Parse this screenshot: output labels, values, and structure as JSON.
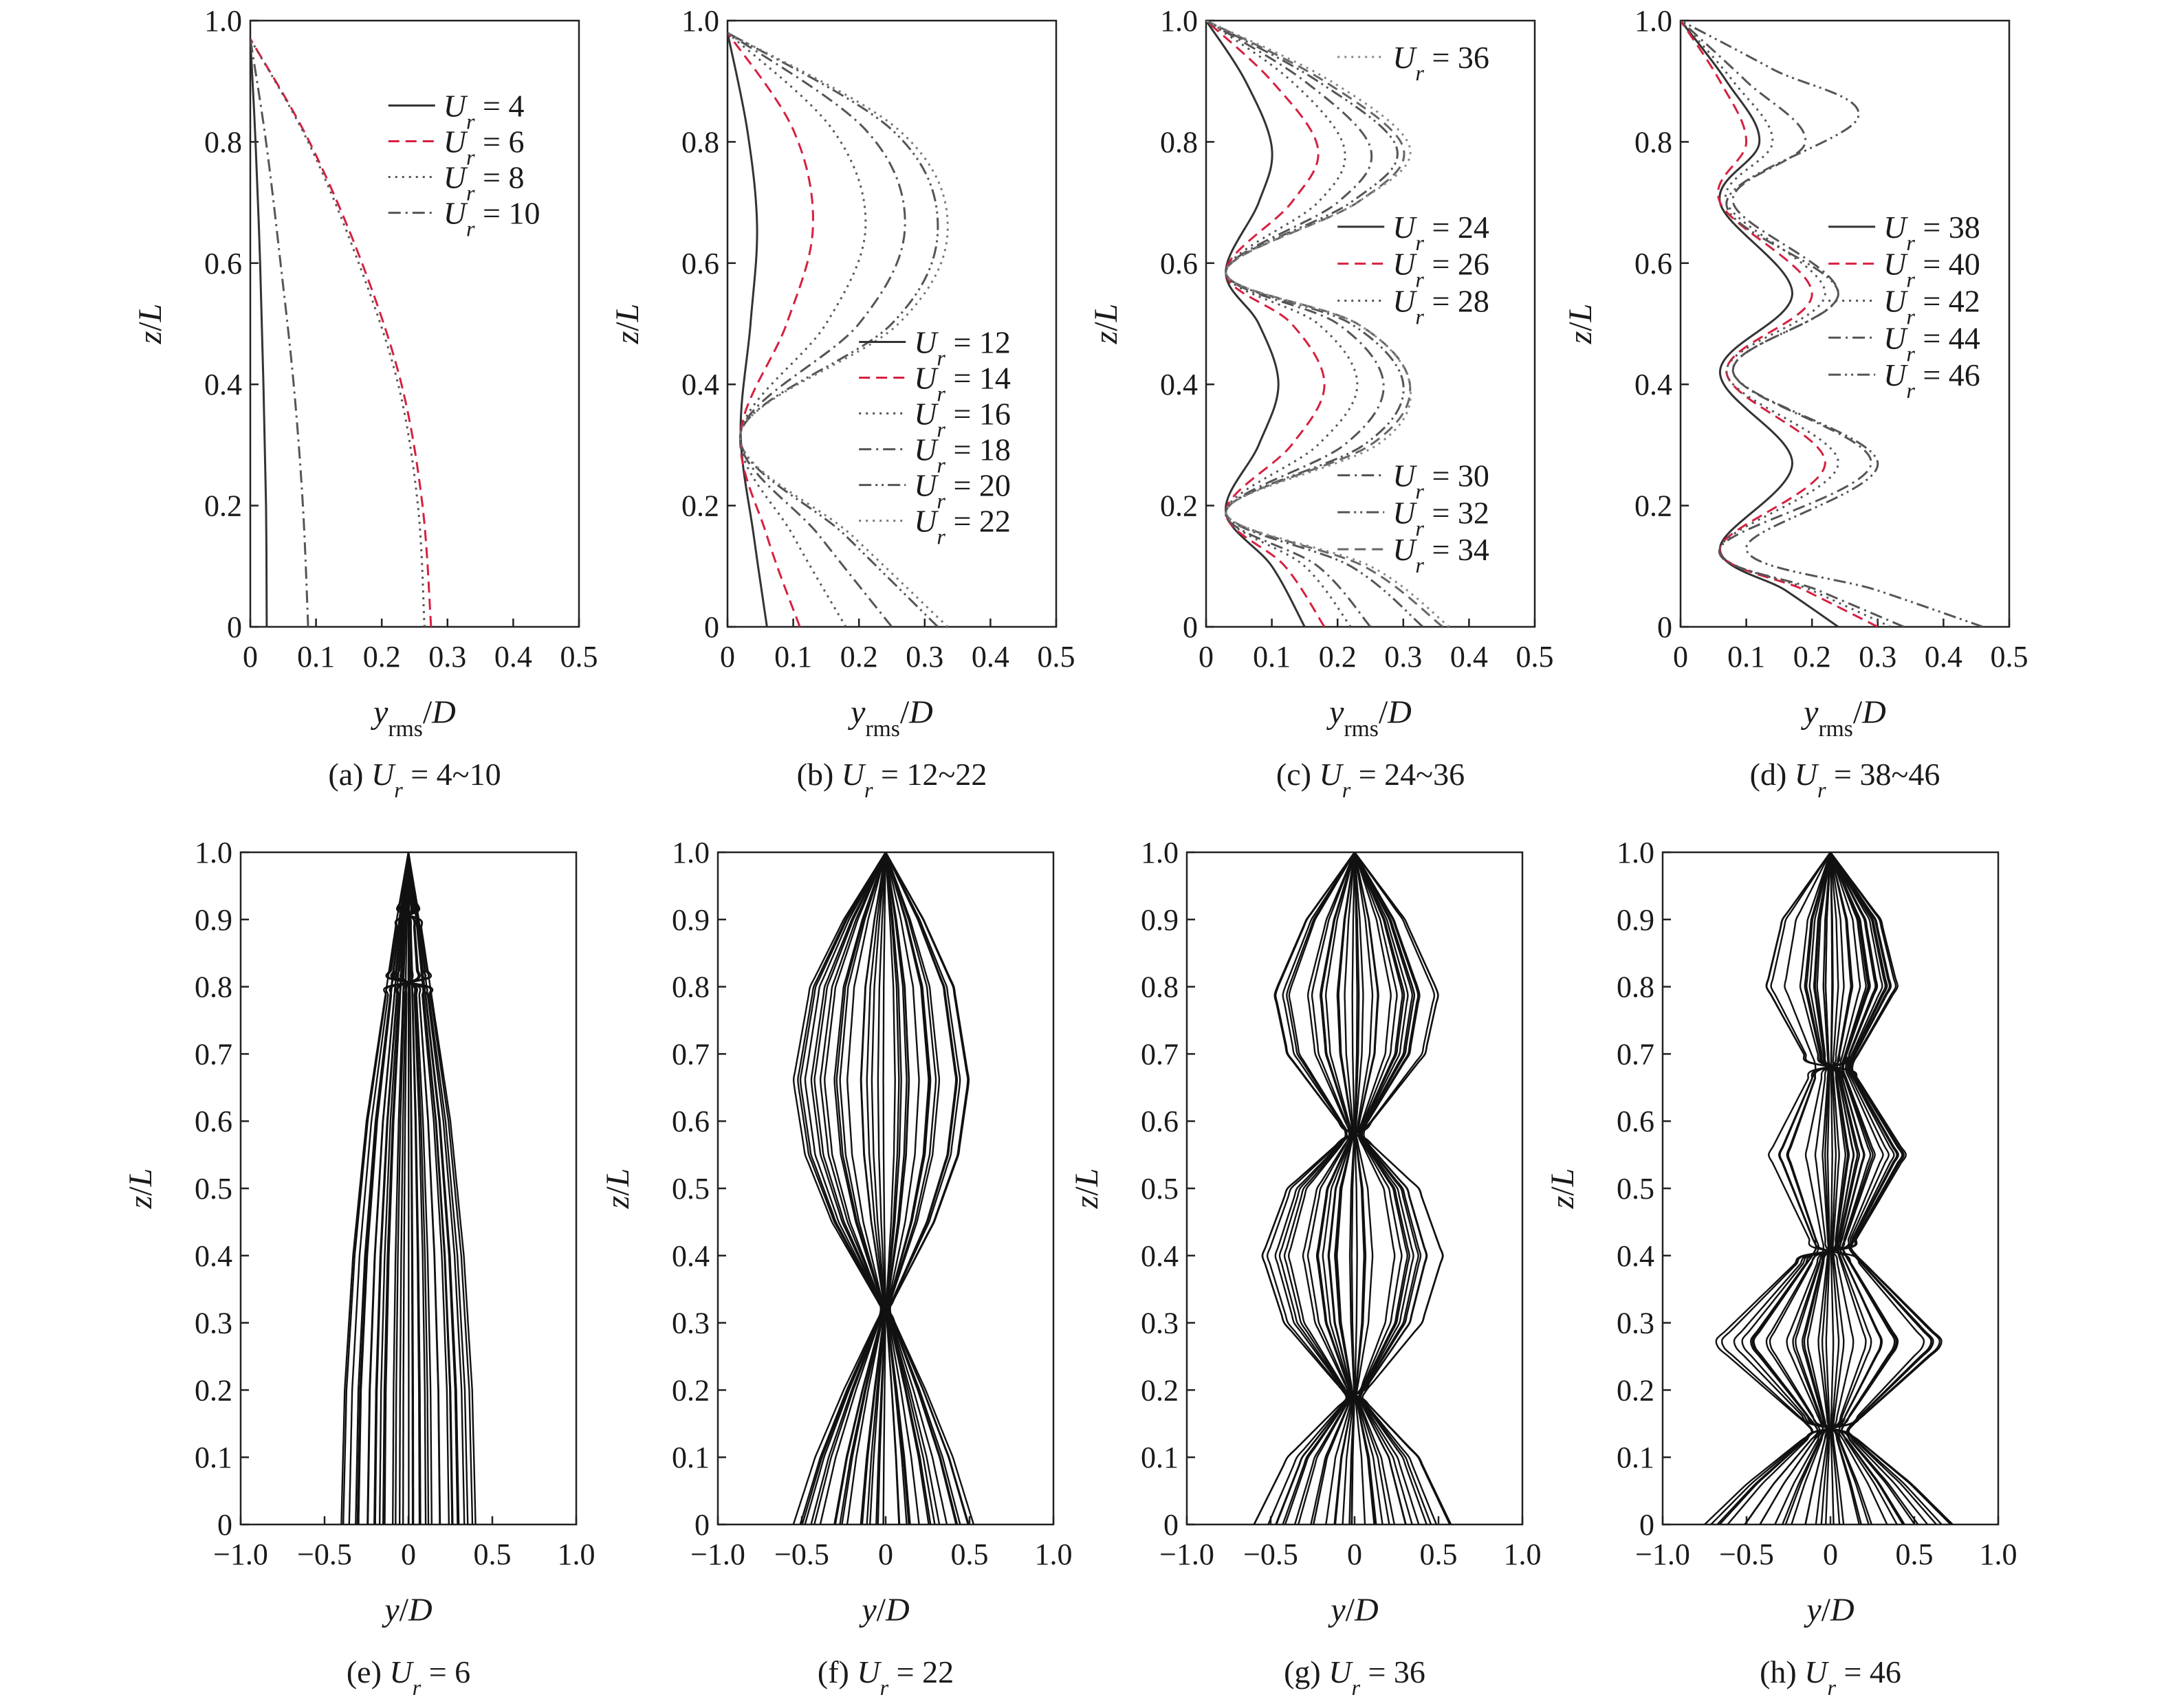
{
  "chart_data": [
    {
      "id": "a",
      "type": "line",
      "caption": "(a) U_r = 4~10",
      "caption_parts": {
        "prefix": "(a) ",
        "var": "U",
        "sub": "r",
        "suffix": " = 4~10"
      },
      "xlabel": "y_rms/D",
      "ylabel": "z/L",
      "xlim": [
        0,
        0.5
      ],
      "ylim": [
        0,
        1.0
      ],
      "xticks": [
        "0",
        "0.1",
        "0.2",
        "0.3",
        "0.4",
        "0.5"
      ],
      "yticks": [
        "0",
        "0.2",
        "0.4",
        "0.6",
        "0.8",
        "1.0"
      ],
      "legend_position": "top-right",
      "legend": [
        {
          "label": "U_r = 4",
          "value": "4"
        },
        {
          "label": "U_r = 6",
          "value": "6"
        },
        {
          "label": "U_r = 8",
          "value": "8"
        },
        {
          "label": "U_r = 10",
          "value": "10"
        }
      ],
      "series": [
        {
          "label": "U_r = 4",
          "style": "solid",
          "color": "#333333",
          "z": [
            0,
            0.2,
            0.4,
            0.6,
            0.8,
            0.97
          ],
          "y": [
            0.025,
            0.024,
            0.02,
            0.015,
            0.008,
            0.0
          ]
        },
        {
          "label": "U_r = 6",
          "style": "dashed",
          "color": "#d62040",
          "z": [
            0,
            0.2,
            0.4,
            0.6,
            0.8,
            0.97
          ],
          "y": [
            0.275,
            0.262,
            0.23,
            0.17,
            0.09,
            0.0
          ]
        },
        {
          "label": "U_r = 8",
          "style": "dotted",
          "color": "#555555",
          "z": [
            0,
            0.2,
            0.4,
            0.6,
            0.8,
            0.97
          ],
          "y": [
            0.265,
            0.255,
            0.225,
            0.165,
            0.088,
            0.0
          ]
        },
        {
          "label": "U_r = 10",
          "style": "dashdot",
          "color": "#555555",
          "z": [
            0,
            0.2,
            0.4,
            0.6,
            0.8,
            0.97
          ],
          "y": [
            0.088,
            0.08,
            0.066,
            0.046,
            0.024,
            0.0
          ]
        }
      ]
    },
    {
      "id": "b",
      "type": "line",
      "caption": "(b) U_r = 12~22",
      "caption_parts": {
        "prefix": "(b) ",
        "var": "U",
        "sub": "r",
        "suffix": " = 12~22"
      },
      "xlabel": "y_rms/D",
      "ylabel": "z/L",
      "xlim": [
        0,
        0.5
      ],
      "ylim": [
        0,
        1.0
      ],
      "xticks": [
        "0",
        "0.1",
        "0.2",
        "0.3",
        "0.4",
        "0.5"
      ],
      "yticks": [
        "0",
        "0.2",
        "0.4",
        "0.6",
        "0.8",
        "1.0"
      ],
      "legend_position": "middle-right",
      "legend": [
        {
          "label": "U_r = 12",
          "value": "12"
        },
        {
          "label": "U_r = 14",
          "value": "14"
        },
        {
          "label": "U_r = 16",
          "value": "16"
        },
        {
          "label": "U_r = 18",
          "value": "18"
        },
        {
          "label": "U_r = 20",
          "value": "20"
        },
        {
          "label": "U_r = 22",
          "value": "22"
        }
      ],
      "series": [
        {
          "label": "U_r = 12",
          "style": "solid",
          "color": "#333333",
          "z": [
            0,
            0.15,
            0.32,
            0.5,
            0.66,
            0.82,
            0.98
          ],
          "y": [
            0.06,
            0.04,
            0.02,
            0.035,
            0.045,
            0.03,
            0.0
          ]
        },
        {
          "label": "U_r = 14",
          "style": "dashed",
          "color": "#d62040",
          "z": [
            0,
            0.15,
            0.32,
            0.5,
            0.66,
            0.82,
            0.98
          ],
          "y": [
            0.11,
            0.06,
            0.02,
            0.09,
            0.13,
            0.1,
            0.0
          ]
        },
        {
          "label": "U_r = 16",
          "style": "dotted",
          "color": "#555555",
          "z": [
            0,
            0.15,
            0.32,
            0.5,
            0.66,
            0.82,
            0.98
          ],
          "y": [
            0.18,
            0.1,
            0.02,
            0.15,
            0.21,
            0.16,
            0.0
          ]
        },
        {
          "label": "U_r = 18",
          "style": "dashdot",
          "color": "#555555",
          "z": [
            0,
            0.15,
            0.32,
            0.5,
            0.66,
            0.82,
            0.98
          ],
          "y": [
            0.25,
            0.14,
            0.02,
            0.2,
            0.27,
            0.21,
            0.0
          ]
        },
        {
          "label": "U_r = 20",
          "style": "dashdotdot",
          "color": "#555555",
          "z": [
            0,
            0.15,
            0.32,
            0.5,
            0.66,
            0.82,
            0.98
          ],
          "y": [
            0.32,
            0.18,
            0.02,
            0.25,
            0.32,
            0.25,
            0.0
          ]
        },
        {
          "label": "U_r = 22",
          "style": "dotted",
          "color": "#777777",
          "z": [
            0,
            0.15,
            0.32,
            0.5,
            0.66,
            0.82,
            0.98
          ],
          "y": [
            0.335,
            0.19,
            0.02,
            0.26,
            0.335,
            0.26,
            0.0
          ]
        }
      ]
    },
    {
      "id": "c",
      "type": "line",
      "caption": "(c) U_r = 24~36",
      "caption_parts": {
        "prefix": "(c) ",
        "var": "U",
        "sub": "r",
        "suffix": " = 24~36"
      },
      "xlabel": "y_rms/D",
      "ylabel": "z/L",
      "xlim": [
        0,
        0.5
      ],
      "ylim": [
        0,
        1.0
      ],
      "xticks": [
        "0",
        "0.1",
        "0.2",
        "0.3",
        "0.4",
        "0.5"
      ],
      "yticks": [
        "0",
        "0.2",
        "0.4",
        "0.6",
        "0.8",
        "1.0"
      ],
      "legend_position": "right",
      "legend": [
        {
          "label": "U_r = 36",
          "value": "36"
        },
        {
          "label": "U_r = 24",
          "value": "24"
        },
        {
          "label": "U_r = 26",
          "value": "26"
        },
        {
          "label": "U_r = 28",
          "value": "28"
        },
        {
          "label": "U_r = 30",
          "value": "30"
        },
        {
          "label": "U_r = 32",
          "value": "32"
        },
        {
          "label": "U_r = 34",
          "value": "34"
        }
      ],
      "series": [
        {
          "label": "U_r = 24",
          "style": "solid",
          "color": "#333333",
          "z": [
            0,
            0.1,
            0.19,
            0.3,
            0.4,
            0.5,
            0.585,
            0.7,
            0.79,
            0.9,
            1.0
          ],
          "y": [
            0.15,
            0.1,
            0.03,
            0.08,
            0.11,
            0.08,
            0.03,
            0.08,
            0.1,
            0.06,
            0.0
          ]
        },
        {
          "label": "U_r = 26",
          "style": "dashed",
          "color": "#d62040",
          "z": [
            0,
            0.1,
            0.19,
            0.3,
            0.4,
            0.5,
            0.585,
            0.7,
            0.79,
            0.9,
            1.0
          ],
          "y": [
            0.18,
            0.12,
            0.03,
            0.13,
            0.18,
            0.13,
            0.03,
            0.13,
            0.17,
            0.1,
            0.0
          ]
        },
        {
          "label": "U_r = 28",
          "style": "dotted",
          "color": "#555555",
          "z": [
            0,
            0.1,
            0.19,
            0.3,
            0.4,
            0.5,
            0.585,
            0.7,
            0.79,
            0.9,
            1.0
          ],
          "y": [
            0.22,
            0.15,
            0.03,
            0.17,
            0.23,
            0.17,
            0.03,
            0.17,
            0.21,
            0.13,
            0.0
          ]
        },
        {
          "label": "U_r = 30",
          "style": "dashdot",
          "color": "#555555",
          "z": [
            0,
            0.1,
            0.19,
            0.3,
            0.4,
            0.5,
            0.585,
            0.7,
            0.79,
            0.9,
            1.0
          ],
          "y": [
            0.25,
            0.17,
            0.03,
            0.21,
            0.27,
            0.2,
            0.03,
            0.2,
            0.25,
            0.15,
            0.0
          ]
        },
        {
          "label": "U_r = 32",
          "style": "dashdotdot",
          "color": "#555555",
          "z": [
            0,
            0.1,
            0.19,
            0.3,
            0.4,
            0.5,
            0.585,
            0.7,
            0.79,
            0.9,
            1.0
          ],
          "y": [
            0.33,
            0.22,
            0.03,
            0.24,
            0.3,
            0.22,
            0.03,
            0.22,
            0.29,
            0.17,
            0.0
          ]
        },
        {
          "label": "U_r = 34",
          "style": "dashed",
          "color": "#666666",
          "z": [
            0,
            0.1,
            0.19,
            0.3,
            0.4,
            0.5,
            0.585,
            0.7,
            0.79,
            0.9,
            1.0
          ],
          "y": [
            0.36,
            0.24,
            0.03,
            0.25,
            0.31,
            0.23,
            0.03,
            0.23,
            0.3,
            0.18,
            0.0
          ]
        },
        {
          "label": "U_r = 36",
          "style": "dotted",
          "color": "#888888",
          "z": [
            0,
            0.1,
            0.19,
            0.3,
            0.4,
            0.5,
            0.585,
            0.7,
            0.79,
            0.9,
            1.0
          ],
          "y": [
            0.37,
            0.25,
            0.03,
            0.26,
            0.31,
            0.23,
            0.03,
            0.23,
            0.31,
            0.19,
            0.0
          ]
        }
      ]
    },
    {
      "id": "d",
      "type": "line",
      "caption": "(d) U_r = 38~46",
      "caption_parts": {
        "prefix": "(d) ",
        "var": "U",
        "sub": "r",
        "suffix": " = 38~46"
      },
      "xlabel": "y_rms/D",
      "ylabel": "z/L",
      "xlim": [
        0,
        0.5
      ],
      "ylim": [
        0,
        1.0
      ],
      "xticks": [
        "0",
        "0.1",
        "0.2",
        "0.3",
        "0.4",
        "0.5"
      ],
      "yticks": [
        "0",
        "0.2",
        "0.4",
        "0.6",
        "0.8",
        "1.0"
      ],
      "legend_position": "right",
      "legend": [
        {
          "label": "U_r = 38",
          "value": "38"
        },
        {
          "label": "U_r = 40",
          "value": "40"
        },
        {
          "label": "U_r = 42",
          "value": "42"
        },
        {
          "label": "U_r = 44",
          "value": "44"
        },
        {
          "label": "U_r = 46",
          "value": "46"
        }
      ],
      "series": [
        {
          "label": "U_r = 38",
          "style": "solid",
          "color": "#333333",
          "z": [
            0,
            0.06,
            0.13,
            0.27,
            0.42,
            0.55,
            0.7,
            0.8,
            0.9,
            1.0
          ],
          "y": [
            0.24,
            0.16,
            0.06,
            0.17,
            0.06,
            0.17,
            0.06,
            0.12,
            0.07,
            0.0
          ]
        },
        {
          "label": "U_r = 40",
          "style": "dashed",
          "color": "#d62040",
          "z": [
            0,
            0.06,
            0.13,
            0.27,
            0.42,
            0.55,
            0.7,
            0.8,
            0.9,
            1.0
          ],
          "y": [
            0.3,
            0.19,
            0.06,
            0.22,
            0.07,
            0.2,
            0.06,
            0.1,
            0.06,
            0.0
          ]
        },
        {
          "label": "U_r = 42",
          "style": "dotted",
          "color": "#555555",
          "z": [
            0,
            0.06,
            0.13,
            0.27,
            0.42,
            0.55,
            0.7,
            0.8,
            0.9,
            1.0
          ],
          "y": [
            0.32,
            0.2,
            0.06,
            0.24,
            0.07,
            0.22,
            0.07,
            0.14,
            0.08,
            0.0
          ]
        },
        {
          "label": "U_r = 44",
          "style": "dashdot",
          "color": "#555555",
          "z": [
            0,
            0.06,
            0.13,
            0.27,
            0.42,
            0.55,
            0.7,
            0.8,
            0.9,
            1.0
          ],
          "y": [
            0.34,
            0.21,
            0.06,
            0.29,
            0.08,
            0.24,
            0.08,
            0.19,
            0.1,
            0.0
          ]
        },
        {
          "label": "U_r = 46",
          "style": "dashdotdot",
          "color": "#555555",
          "z": [
            0,
            0.06,
            0.13,
            0.27,
            0.42,
            0.55,
            0.7,
            0.84,
            0.92,
            1.0
          ],
          "y": [
            0.46,
            0.3,
            0.1,
            0.3,
            0.08,
            0.24,
            0.07,
            0.27,
            0.14,
            0.0
          ]
        }
      ]
    },
    {
      "id": "e",
      "type": "line",
      "caption": "(e) U_r = 6",
      "caption_parts": {
        "prefix": "(e) ",
        "var": "U",
        "sub": "r",
        "suffix": " = 6"
      },
      "xlabel": "y/D",
      "ylabel": "z/L",
      "xlim": [
        -1.0,
        1.0
      ],
      "ylim": [
        0,
        1.0
      ],
      "xticks": [
        "−1.0",
        "−0.5",
        "0",
        "0.5",
        "1.0"
      ],
      "yticks": [
        "0",
        "0.1",
        "0.2",
        "0.3",
        "0.4",
        "0.5",
        "0.6",
        "0.7",
        "0.8",
        "0.9",
        "1.0"
      ],
      "envelope": {
        "z": [
          0,
          0.2,
          0.4,
          0.6,
          0.8,
          0.9,
          1.0
        ],
        "amplitude": [
          0.4,
          0.38,
          0.33,
          0.25,
          0.13,
          0.07,
          0.0
        ]
      },
      "snapshot_count": 36
    },
    {
      "id": "f",
      "type": "line",
      "caption": "(f) U_r = 22",
      "caption_parts": {
        "prefix": "(f) ",
        "var": "U",
        "sub": "r",
        "suffix": " = 22"
      },
      "xlabel": "y/D",
      "ylabel": "z/L",
      "xlim": [
        -1.0,
        1.0
      ],
      "ylim": [
        0,
        1.0
      ],
      "xticks": [
        "−1.0",
        "−0.5",
        "0",
        "0.5",
        "1.0"
      ],
      "yticks": [
        "0",
        "0.1",
        "0.2",
        "0.3",
        "0.4",
        "0.5",
        "0.6",
        "0.7",
        "0.8",
        "0.9",
        "1.0"
      ],
      "envelope": {
        "z": [
          0,
          0.1,
          0.2,
          0.32,
          0.45,
          0.55,
          0.66,
          0.8,
          0.9,
          1.0
        ],
        "amplitude": [
          0.55,
          0.42,
          0.25,
          0.02,
          0.32,
          0.48,
          0.55,
          0.45,
          0.25,
          0.0
        ]
      },
      "snapshot_count": 36
    },
    {
      "id": "g",
      "type": "line",
      "caption": "(g) U_r = 36",
      "caption_parts": {
        "prefix": "(g) ",
        "var": "U",
        "sub": "r",
        "suffix": " = 36"
      },
      "xlabel": "y/D",
      "ylabel": "z/L",
      "xlim": [
        -1.0,
        1.0
      ],
      "ylim": [
        0,
        1.0
      ],
      "xticks": [
        "−1.0",
        "−0.5",
        "0",
        "0.5",
        "1.0"
      ],
      "yticks": [
        "0",
        "0.1",
        "0.2",
        "0.3",
        "0.4",
        "0.5",
        "0.6",
        "0.7",
        "0.8",
        "0.9",
        "1.0"
      ],
      "envelope": {
        "z": [
          0,
          0.1,
          0.19,
          0.3,
          0.4,
          0.5,
          0.58,
          0.7,
          0.79,
          0.9,
          1.0
        ],
        "amplitude": [
          0.6,
          0.4,
          0.04,
          0.42,
          0.55,
          0.4,
          0.04,
          0.42,
          0.5,
          0.3,
          0.0
        ]
      },
      "snapshot_count": 36
    },
    {
      "id": "h",
      "type": "line",
      "caption": "(h) U_r = 46",
      "caption_parts": {
        "prefix": "(h) ",
        "var": "U",
        "sub": "r",
        "suffix": " = 46"
      },
      "xlabel": "y/D",
      "ylabel": "z/L",
      "xlim": [
        -1.0,
        1.0
      ],
      "ylim": [
        0,
        1.0
      ],
      "xticks": [
        "−1.0",
        "−0.5",
        "0",
        "0.5",
        "1.0"
      ],
      "yticks": [
        "0",
        "0.1",
        "0.2",
        "0.3",
        "0.4",
        "0.5",
        "0.6",
        "0.7",
        "0.8",
        "0.9",
        "1.0"
      ],
      "envelope": {
        "z": [
          0,
          0.06,
          0.14,
          0.27,
          0.41,
          0.55,
          0.68,
          0.8,
          0.9,
          1.0
        ],
        "amplitude": [
          0.75,
          0.5,
          0.1,
          0.7,
          0.12,
          0.45,
          0.12,
          0.4,
          0.3,
          0.0
        ]
      },
      "snapshot_count": 36
    }
  ]
}
